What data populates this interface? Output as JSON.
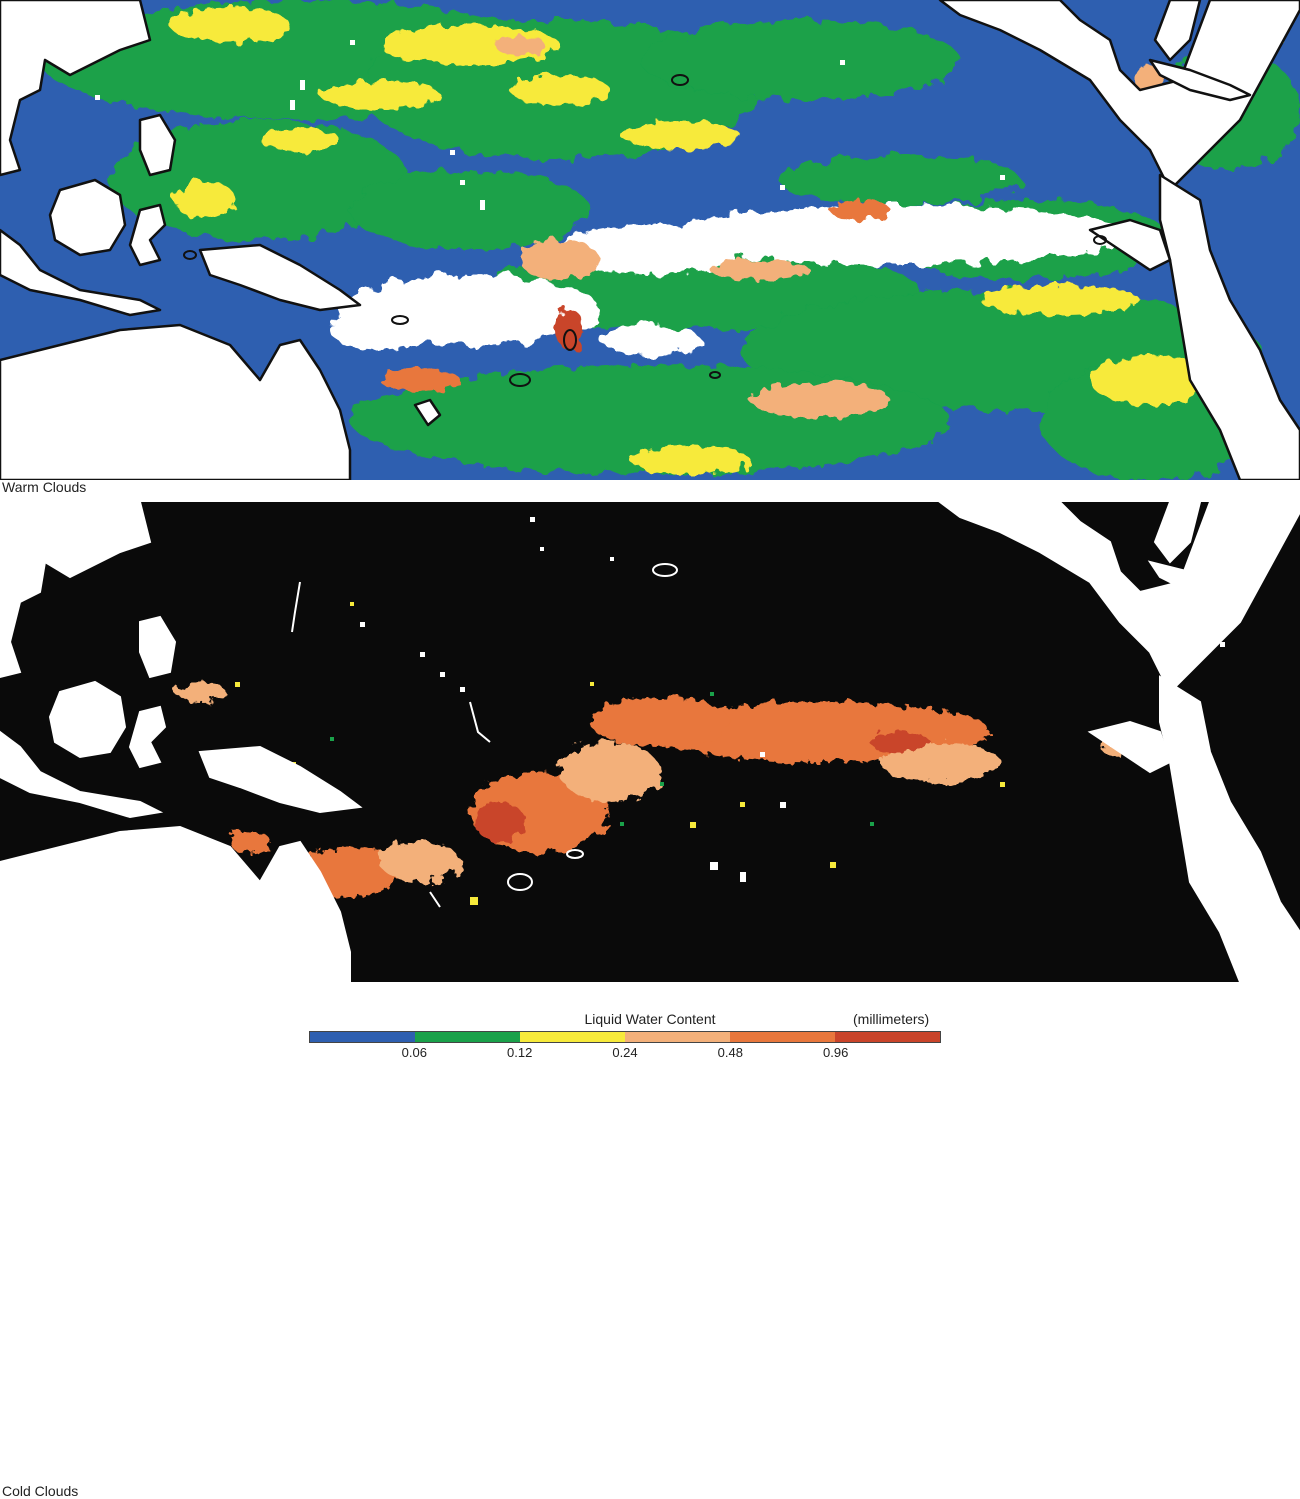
{
  "panels": [
    {
      "label": "Warm Clouds",
      "background": "#2e5fb0"
    },
    {
      "label": "Cold Clouds",
      "background": "#0a0a0a"
    }
  ],
  "legend": {
    "title": "Liquid Water Content",
    "units": "(millimeters)",
    "ticks": [
      "0.06",
      "0.12",
      "0.24",
      "0.48",
      "0.96"
    ],
    "colors": [
      "#2e5fb0",
      "#1aa14a",
      "#f7ea3b",
      "#f3b07a",
      "#e8773c",
      "#c9442a"
    ]
  },
  "palette": {
    "land": "#ffffff",
    "coast": "#111111",
    "cold_coast": "#ffffff"
  }
}
